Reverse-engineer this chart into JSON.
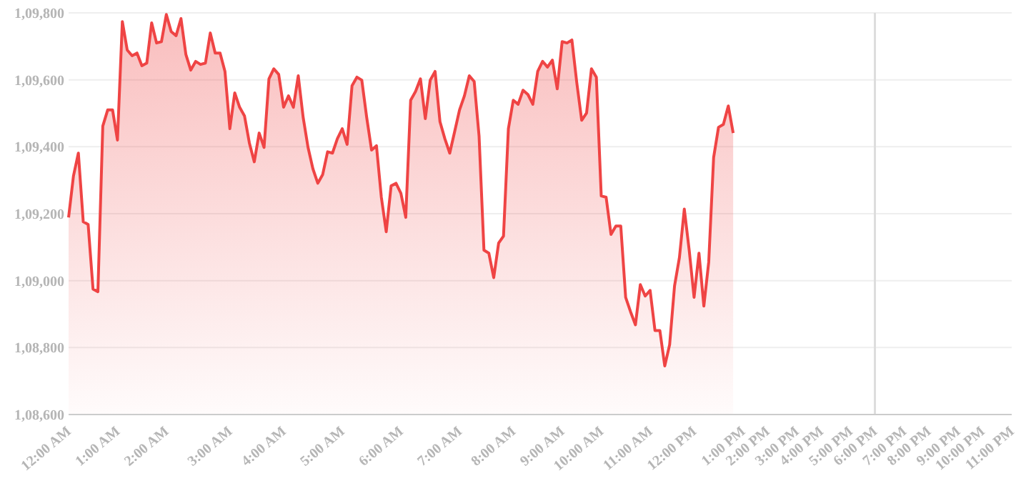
{
  "chart_data": {
    "type": "area",
    "categories": [
      "12:00 AM",
      null,
      null,
      null,
      null,
      null,
      null,
      null,
      null,
      null,
      "1:00 AM",
      null,
      null,
      null,
      null,
      null,
      null,
      null,
      null,
      null,
      "2:00 AM",
      null,
      null,
      null,
      null,
      null,
      null,
      null,
      null,
      null,
      null,
      null,
      null,
      "3:00 AM",
      null,
      null,
      null,
      null,
      null,
      null,
      null,
      null,
      null,
      null,
      "4:00 AM",
      null,
      null,
      null,
      null,
      null,
      null,
      null,
      null,
      null,
      null,
      null,
      "5:00 AM",
      null,
      null,
      null,
      null,
      null,
      null,
      null,
      null,
      null,
      null,
      null,
      "6:00 AM",
      null,
      null,
      null,
      null,
      null,
      null,
      null,
      null,
      null,
      null,
      null,
      "7:00 AM",
      null,
      null,
      null,
      null,
      null,
      null,
      null,
      null,
      null,
      null,
      "8:00 AM",
      null,
      null,
      null,
      null,
      null,
      null,
      null,
      null,
      null,
      "9:00 AM",
      null,
      null,
      null,
      null,
      null,
      null,
      null,
      "10:00 AM",
      null,
      null,
      null,
      null,
      null,
      null,
      null,
      null,
      null,
      "11:00 AM",
      null,
      null,
      null,
      null,
      null,
      null,
      null,
      null,
      "12:00 PM",
      null,
      null,
      null,
      null,
      null,
      null,
      null,
      null,
      null,
      "1:00 PM",
      null,
      null,
      null,
      null,
      "2:00 PM",
      null,
      null,
      null,
      null,
      null,
      "3:00 PM",
      null,
      null,
      null,
      null,
      "4:00 PM",
      null,
      null,
      null,
      null,
      null,
      "5:00 PM",
      null,
      null,
      null,
      null,
      "6:00 PM",
      null,
      null,
      null,
      null,
      null,
      "7:00 PM",
      null,
      null,
      null,
      null,
      "8:00 PM",
      null,
      null,
      null,
      null,
      null,
      "9:00 PM",
      null,
      null,
      null,
      null,
      "10:00 PM",
      null,
      null,
      null,
      null,
      null,
      "11:00 PM"
    ],
    "series": [
      {
        "color": "#ef4444",
        "values": [
          109189,
          109313,
          109381,
          109176,
          109168,
          108975,
          108967,
          109462,
          109510,
          109510,
          109420,
          109774,
          109689,
          109672,
          109680,
          109642,
          109650,
          109770,
          109710,
          109714,
          109795,
          109744,
          109732,
          109783,
          109676,
          109629,
          109655,
          109646,
          109650,
          109740,
          109680,
          109680,
          109625,
          109454,
          109561,
          109518,
          109492,
          109411,
          109355,
          109441,
          109398,
          109603,
          109633,
          109616,
          109518,
          109552,
          109518,
          109612,
          109488,
          109398,
          109334,
          109291,
          109317,
          109385,
          109381,
          109424,
          109454,
          109407,
          109582,
          109608,
          109599,
          109488,
          109390,
          109403,
          109249,
          109146,
          109283,
          109291,
          109261,
          109189,
          109539,
          109565,
          109603,
          109484,
          109599,
          109625,
          109475,
          109424,
          109381,
          109445,
          109510,
          109552,
          109612,
          109595,
          109432,
          109091,
          109082,
          109009,
          109112,
          109133,
          109454,
          109539,
          109527,
          109569,
          109556,
          109527,
          109625,
          109655,
          109638,
          109659,
          109573,
          109714,
          109710,
          109719,
          109591,
          109479,
          109501,
          109633,
          109608,
          109253,
          109249,
          109138,
          109163,
          109163,
          108950,
          108907,
          108868,
          108988,
          108954,
          108971,
          108851,
          108851,
          108745,
          108809,
          108984,
          109069,
          109214,
          109091,
          108950,
          109082,
          108924,
          109056,
          109368,
          109458,
          109467,
          109522,
          109441,
          null,
          null,
          null,
          null,
          null,
          null,
          null,
          null,
          null,
          null,
          null,
          null,
          null,
          null,
          null,
          null,
          null,
          null,
          null,
          null,
          null,
          null,
          null,
          null,
          null,
          null,
          null,
          null,
          null,
          null,
          null,
          null,
          null,
          null,
          null,
          null,
          null,
          null,
          null,
          null,
          null,
          null,
          null,
          null,
          null,
          null,
          null,
          null,
          null,
          null,
          null,
          null,
          null,
          null,
          null,
          null,
          null
        ]
      }
    ],
    "ylim": [
      108600,
      109800
    ],
    "yticks": [
      {
        "value": 108600,
        "label": "1,08,600"
      },
      {
        "value": 108800,
        "label": "1,08,800"
      },
      {
        "value": 109000,
        "label": "1,09,000"
      },
      {
        "value": 109200,
        "label": "1,09,200"
      },
      {
        "value": 109400,
        "label": "1,09,400"
      },
      {
        "value": 109600,
        "label": "1,09,600"
      },
      {
        "value": 109800,
        "label": "1,09,800"
      }
    ],
    "grid": "y",
    "ref_lines": [
      {
        "axis": "x",
        "value": "6:00 PM",
        "color": "#dddddd"
      }
    ]
  }
}
